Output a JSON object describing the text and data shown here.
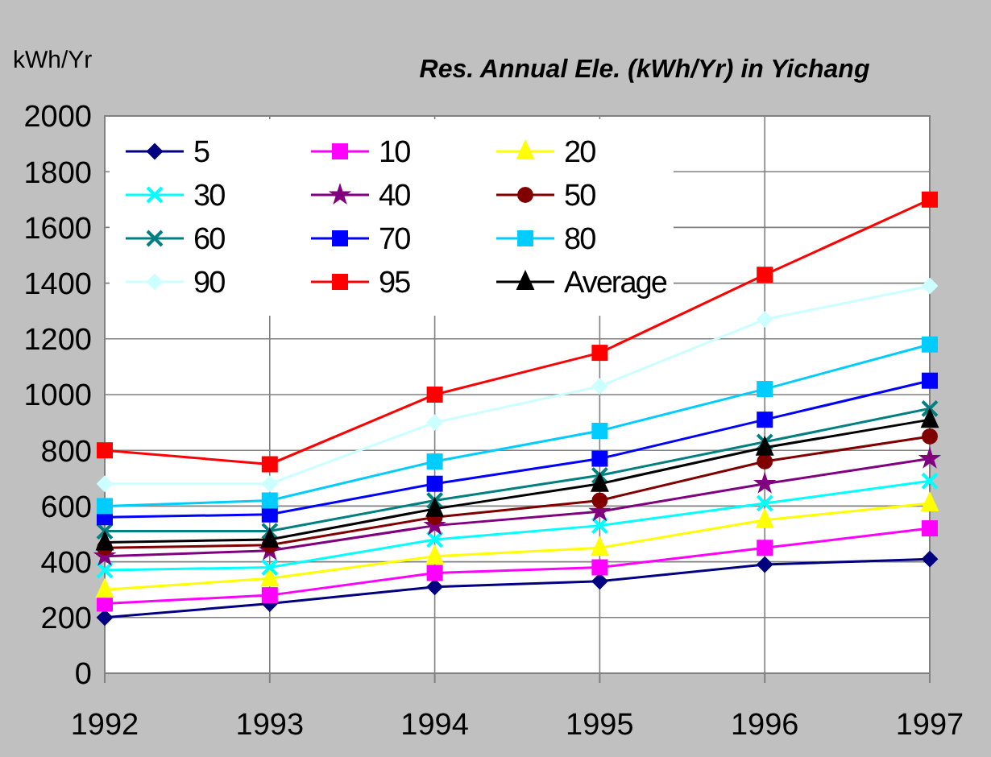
{
  "chart_data": {
    "type": "line",
    "title": "Res. Annual Ele. (kWh/Yr) in Yichang",
    "ylabel": "kWh/Yr",
    "x": [
      1992,
      1993,
      1994,
      1995,
      1996,
      1997
    ],
    "xlim": [
      1992,
      1997
    ],
    "xticks": [
      1992,
      1993,
      1994,
      1995,
      1996,
      1997
    ],
    "ylim": [
      0,
      2000
    ],
    "yticks": [
      0,
      200,
      400,
      600,
      800,
      1000,
      1200,
      1400,
      1600,
      1800,
      2000
    ],
    "grid": true,
    "legend": "top left",
    "series": [
      {
        "name": "5",
        "color": "#000080",
        "marker": "diamond",
        "values": [
          200,
          250,
          310,
          330,
          390,
          410
        ]
      },
      {
        "name": "10",
        "color": "#ff00ff",
        "marker": "square",
        "values": [
          250,
          280,
          360,
          380,
          450,
          520
        ]
      },
      {
        "name": "20",
        "color": "#ffff00",
        "marker": "triangle",
        "values": [
          300,
          340,
          420,
          450,
          550,
          610
        ]
      },
      {
        "name": "30",
        "color": "#00ffff",
        "marker": "cross",
        "values": [
          370,
          380,
          480,
          530,
          610,
          690
        ]
      },
      {
        "name": "40",
        "color": "#800080",
        "marker": "star",
        "values": [
          420,
          440,
          530,
          580,
          680,
          770
        ]
      },
      {
        "name": "50",
        "color": "#800000",
        "marker": "circle",
        "values": [
          450,
          460,
          560,
          620,
          760,
          850
        ]
      },
      {
        "name": "60",
        "color": "#008080",
        "marker": "cross",
        "values": [
          510,
          510,
          620,
          710,
          830,
          950
        ]
      },
      {
        "name": "70",
        "color": "#0000ff",
        "marker": "square",
        "values": [
          560,
          570,
          680,
          770,
          910,
          1050
        ]
      },
      {
        "name": "80",
        "color": "#00ccff",
        "marker": "square",
        "values": [
          600,
          620,
          760,
          870,
          1020,
          1180
        ]
      },
      {
        "name": "90",
        "color": "#ccffff",
        "marker": "diamond",
        "values": [
          680,
          680,
          900,
          1030,
          1270,
          1390
        ]
      },
      {
        "name": "95",
        "color": "#ff0000",
        "marker": "square",
        "values": [
          800,
          750,
          1000,
          1150,
          1430,
          1700
        ]
      },
      {
        "name": "Average",
        "color": "#000000",
        "marker": "triangle",
        "values": [
          470,
          480,
          590,
          680,
          810,
          910
        ]
      }
    ]
  }
}
